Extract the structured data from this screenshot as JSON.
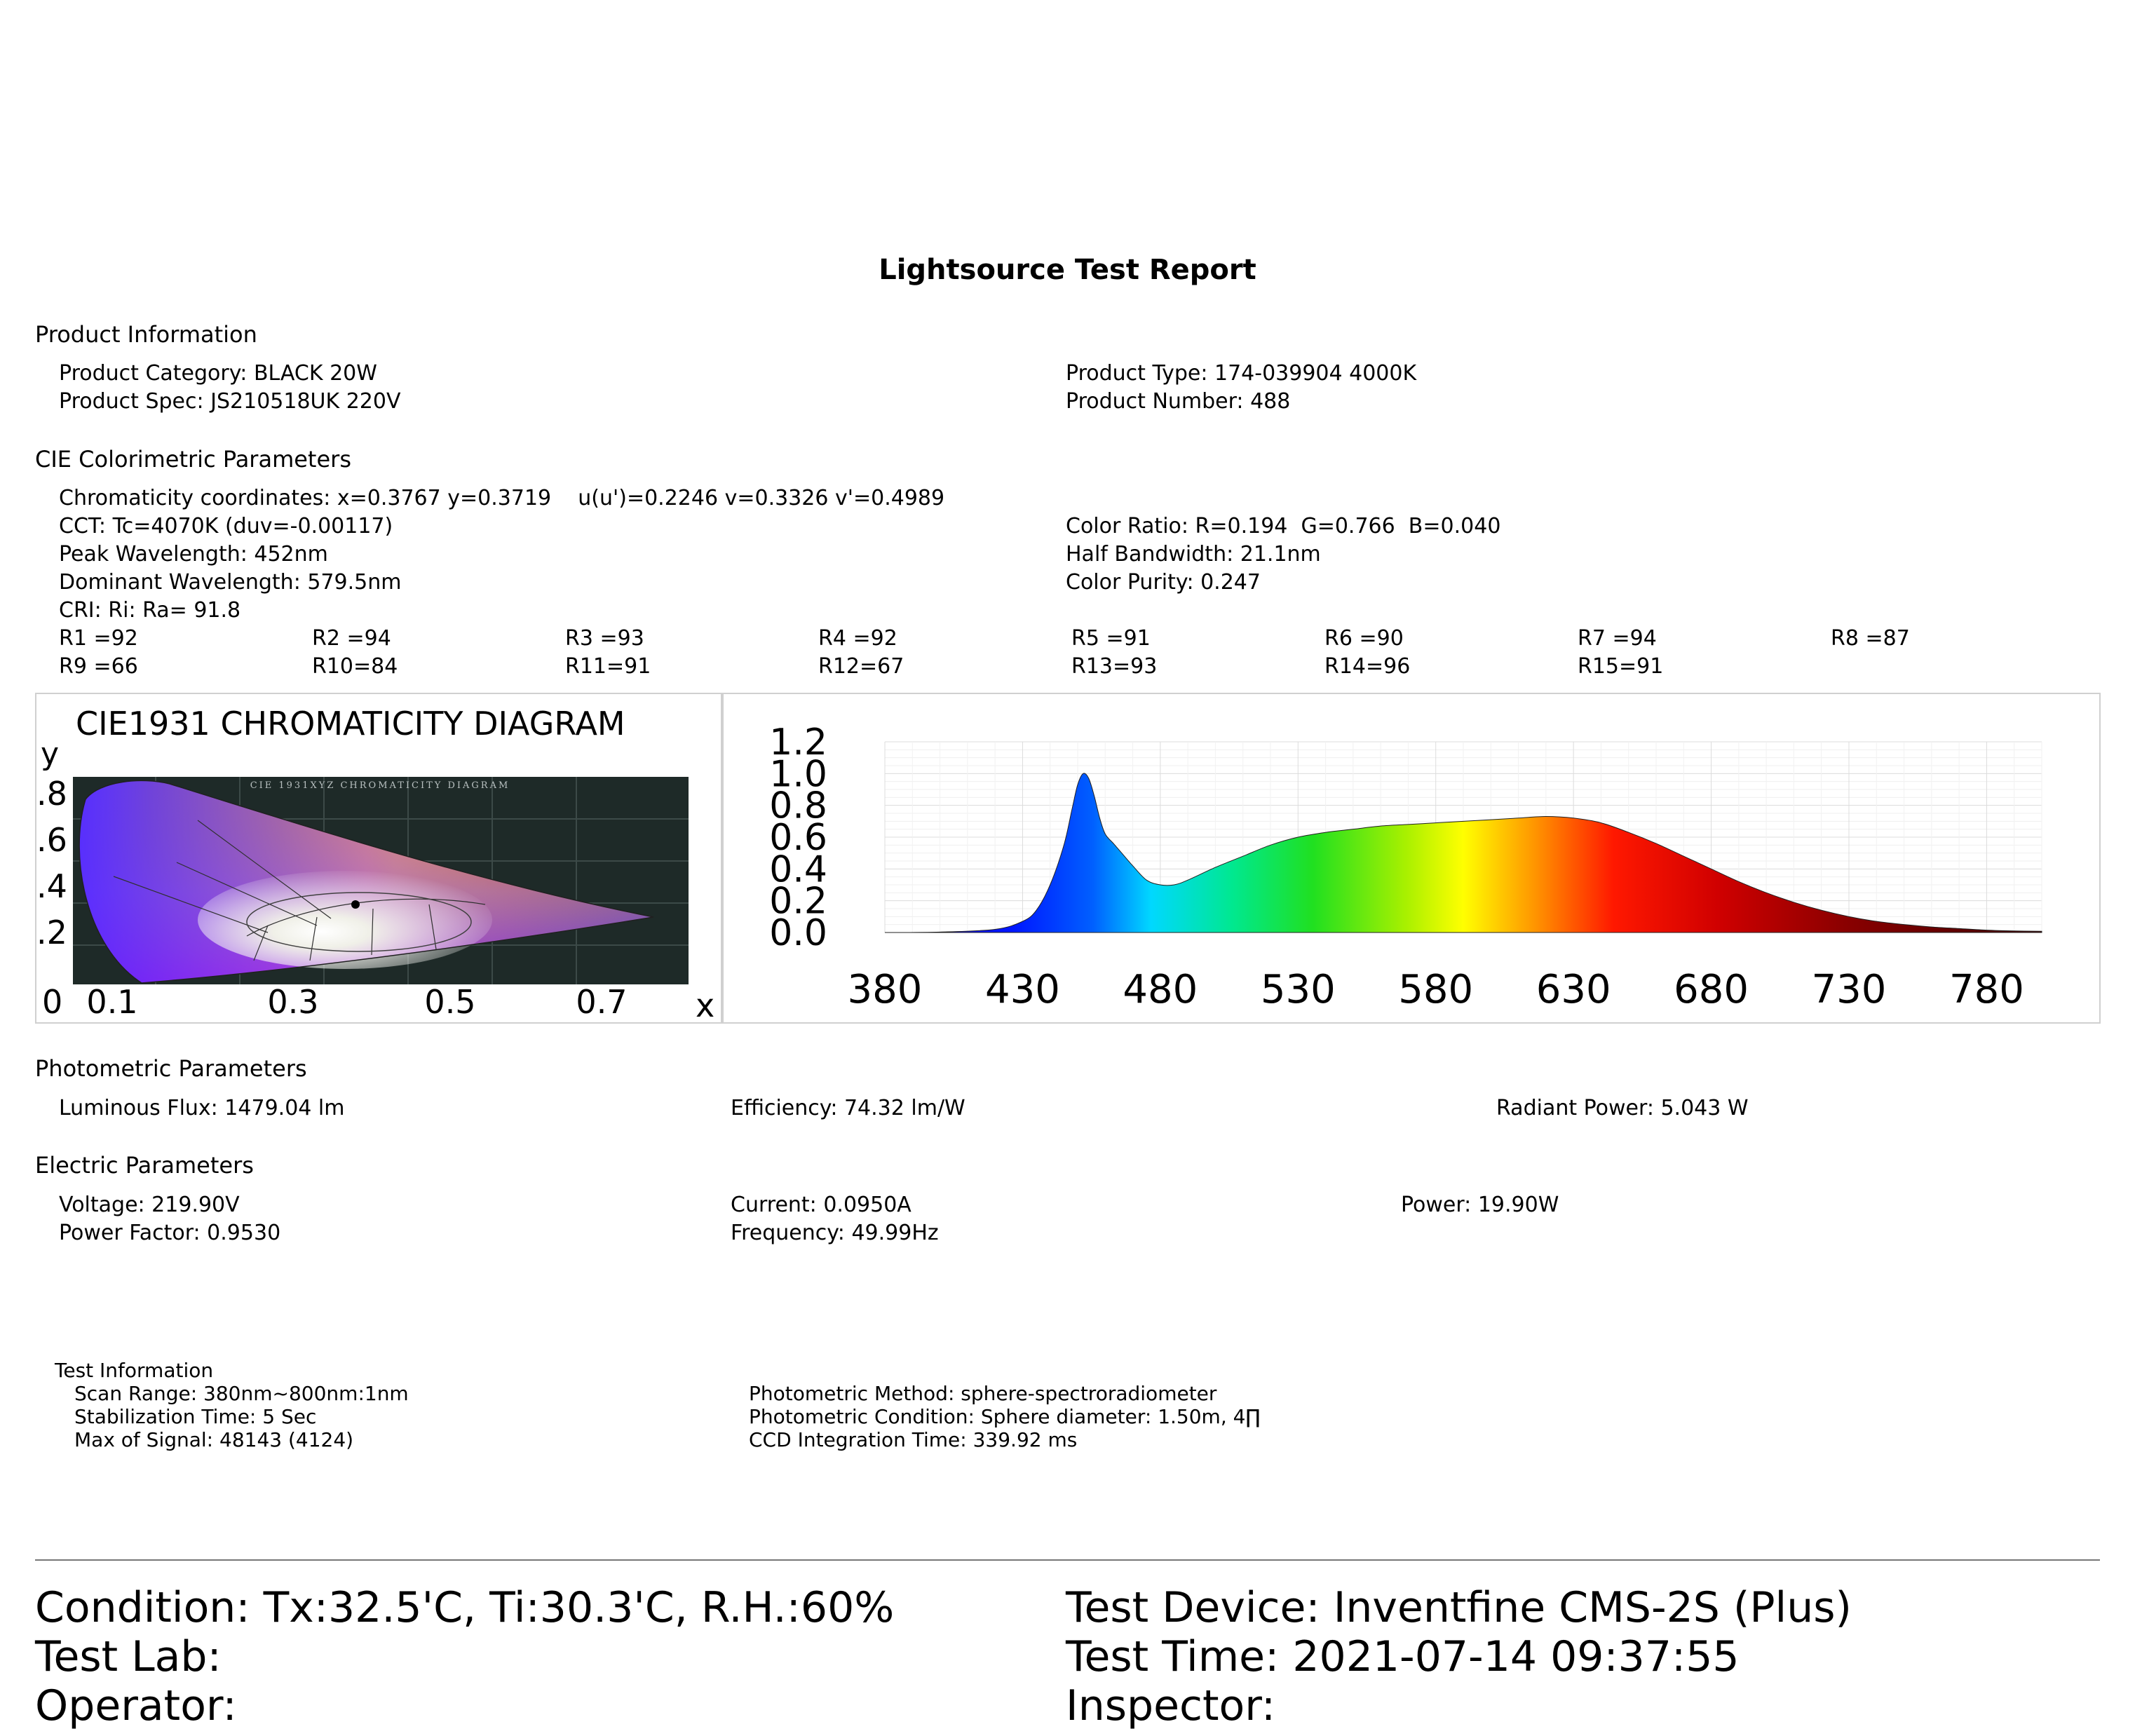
{
  "title": "Lightsource Test Report",
  "product": {
    "heading": "Product Information",
    "category": "Product Category: BLACK 20W",
    "spec": "Product Spec: JS210518UK 220V",
    "type": "Product Type: 174-039904 4000K",
    "number": "Product Number: 488"
  },
  "cie": {
    "heading": "CIE Colorimetric Parameters",
    "chromaticity": "Chromaticity coordinates: x=0.3767 y=0.3719    u(u')=0.2246 v=0.3326 v'=0.4989",
    "cct": "CCT: Tc=4070K (duv=-0.00117)",
    "color_ratio": "Color Ratio: R=0.194  G=0.766  B=0.040",
    "peak": "Peak Wavelength: 452nm",
    "half_bw": "Half Bandwidth: 21.1nm",
    "dominant": "Dominant Wavelength: 579.5nm",
    "purity": "Color Purity: 0.247",
    "cri": "CRI: Ri: Ra= 91.8",
    "r_row1": [
      "R1 =92",
      "R2 =94",
      "R3 =93",
      "R4 =92",
      "R5 =91",
      "R6 =90",
      "R7 =94",
      "R8 =87"
    ],
    "r_row2": [
      "R9 =66",
      "R10=84",
      "R11=91",
      "R12=67",
      "R13=93",
      "R14=96",
      "R15=91"
    ]
  },
  "cie_diagram": {
    "title": "CIE1931 CHROMATICITY DIAGRAM",
    "y_axis_label": "y",
    "x_axis_label": "x",
    "origin_label": "0",
    "y_ticks": [
      ".8",
      ".6",
      ".4",
      ".2"
    ],
    "x_ticks": [
      "0.1",
      "0.3",
      "0.5",
      "0.7"
    ],
    "inner_title": "CIE 1931XYZ CHROMATICITY DIAGRAM",
    "point": {
      "x": 0.3767,
      "y": 0.3719
    }
  },
  "chart_data": {
    "type": "area",
    "title": "",
    "xlabel": "",
    "ylabel": "",
    "xlim": [
      380,
      800
    ],
    "ylim": [
      0,
      1.2
    ],
    "x_ticks": [
      380,
      430,
      480,
      530,
      580,
      630,
      680,
      730,
      780
    ],
    "y_ticks": [
      "0.0",
      "0.2",
      "0.4",
      "0.6",
      "0.8",
      "1.0",
      "1.2"
    ],
    "grid": true,
    "x": [
      380,
      400,
      420,
      430,
      435,
      440,
      445,
      448,
      450,
      452,
      454,
      456,
      458,
      460,
      463,
      466,
      470,
      475,
      480,
      485,
      490,
      500,
      510,
      520,
      530,
      540,
      550,
      560,
      570,
      580,
      590,
      600,
      610,
      620,
      630,
      640,
      650,
      660,
      670,
      680,
      690,
      700,
      710,
      720,
      730,
      740,
      750,
      760,
      770,
      780,
      790,
      800
    ],
    "values": [
      0.0,
      0.003,
      0.02,
      0.07,
      0.14,
      0.3,
      0.55,
      0.78,
      0.93,
      1.0,
      0.97,
      0.86,
      0.72,
      0.62,
      0.56,
      0.5,
      0.42,
      0.33,
      0.3,
      0.3,
      0.33,
      0.41,
      0.48,
      0.55,
      0.6,
      0.63,
      0.65,
      0.67,
      0.68,
      0.69,
      0.7,
      0.71,
      0.72,
      0.73,
      0.72,
      0.69,
      0.63,
      0.56,
      0.48,
      0.4,
      0.32,
      0.25,
      0.19,
      0.14,
      0.1,
      0.07,
      0.05,
      0.035,
      0.025,
      0.015,
      0.01,
      0.008
    ]
  },
  "photometric": {
    "heading": "Photometric Parameters",
    "flux": "Luminous Flux: 1479.04 lm",
    "efficiency": "Efficiency: 74.32 lm/W",
    "radiant": "Radiant Power: 5.043 W"
  },
  "electric": {
    "heading": "Electric Parameters",
    "voltage": "Voltage: 219.90V",
    "current": "Current: 0.0950A",
    "power": "Power: 19.90W",
    "pf": "Power Factor: 0.9530",
    "frequency": "Frequency: 49.99Hz"
  },
  "test_info": {
    "heading": "Test Information",
    "scan": "Scan Range: 380nm~800nm:1nm",
    "stab": "Stabilization Time: 5 Sec",
    "max_signal": "Max of Signal: 48143 (4124)",
    "method": "Photometric Method: sphere-spectroradiometer",
    "condition": "Photometric Condition: Sphere diameter: 1.50m, 4∏",
    "ccd": "CCD Integration Time: 339.92 ms"
  },
  "footer": {
    "condition": "Condition: Tx:32.5'C, Ti:30.3'C, R.H.:60%",
    "device": "Test Device: Inventfine CMS-2S (Plus)",
    "lab": "Test Lab:",
    "time": "Test Time: 2021-07-14 09:37:55",
    "operator": "Operator:",
    "inspector": "Inspector:"
  }
}
